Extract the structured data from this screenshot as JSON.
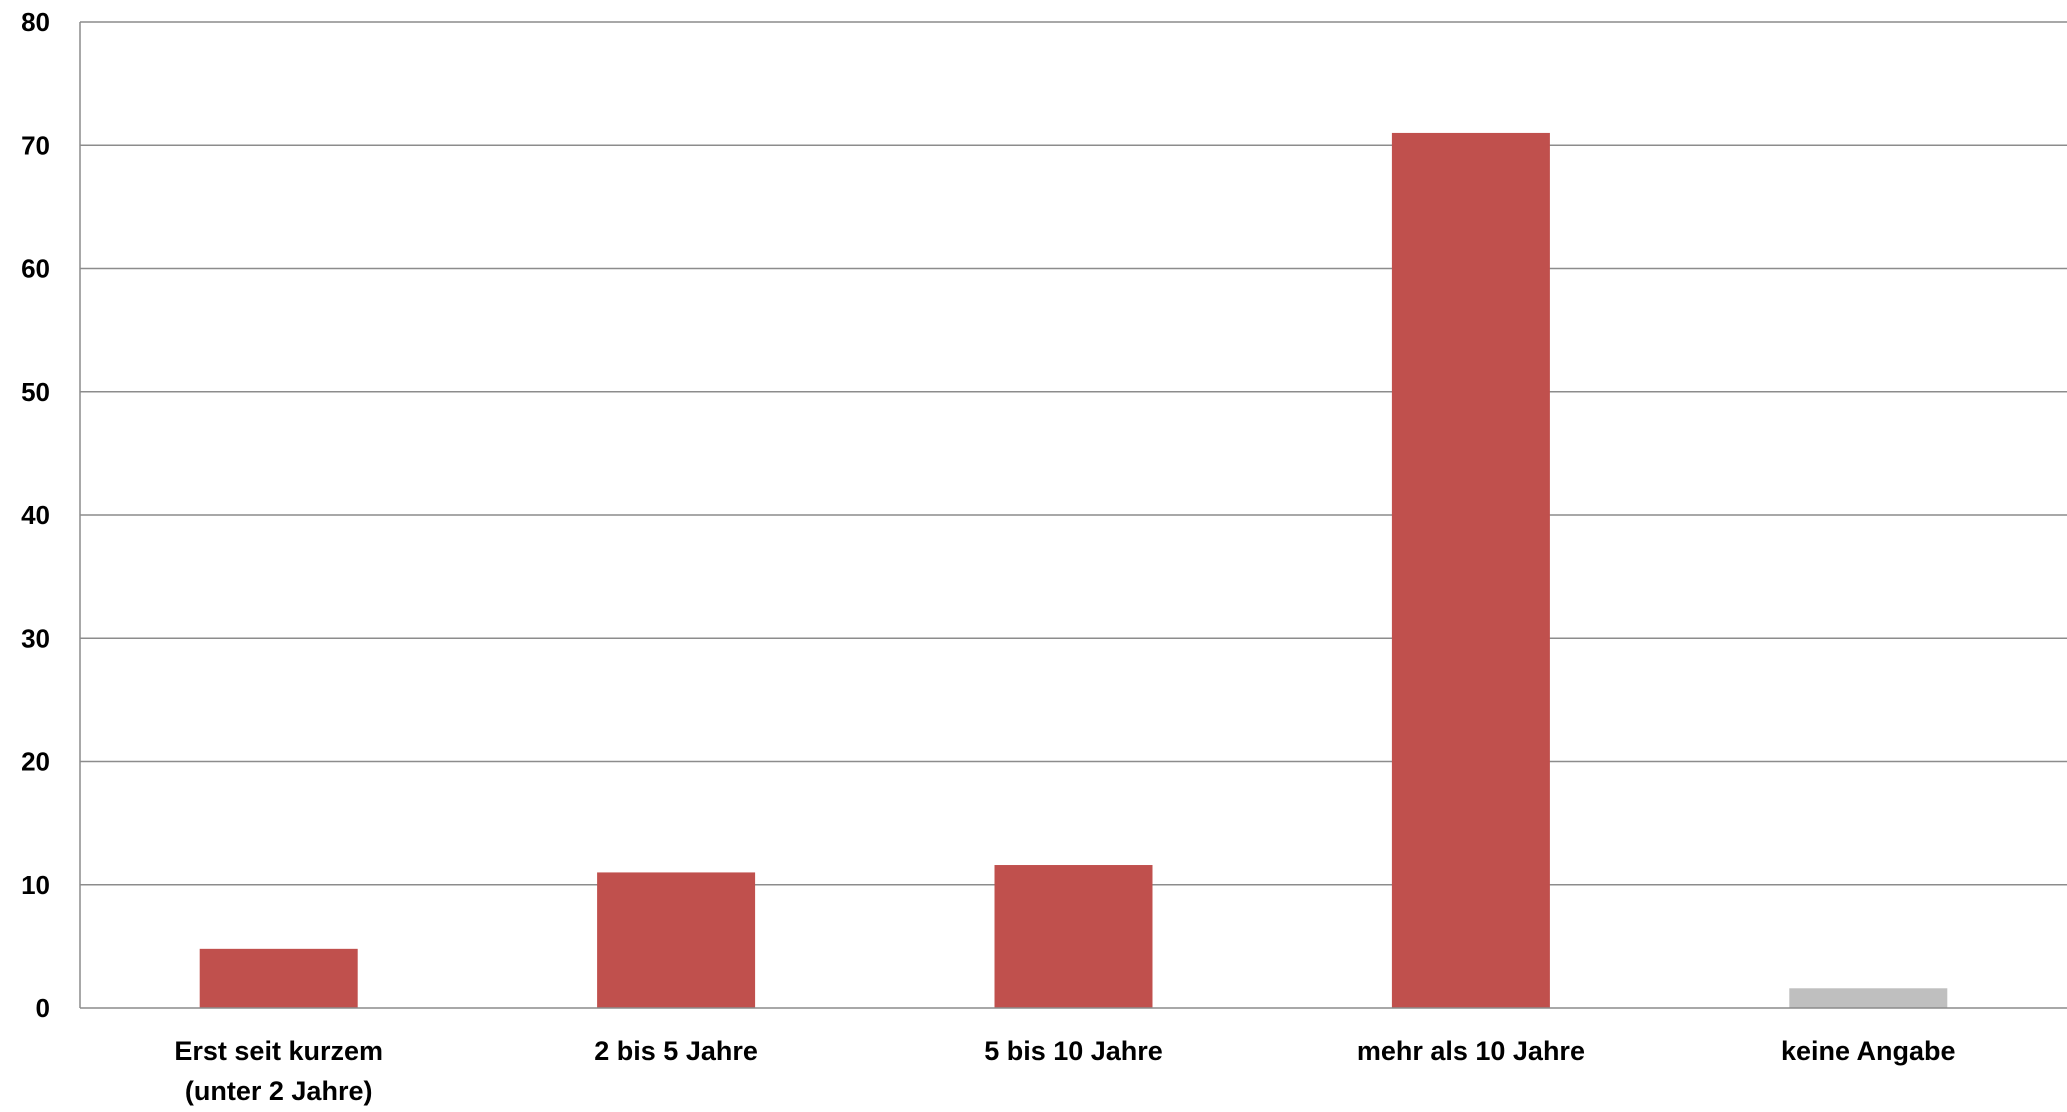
{
  "chart_data": {
    "type": "bar",
    "categories": [
      [
        "Erst seit kurzem",
        "(unter 2 Jahre)"
      ],
      [
        "2 bis 5 Jahre"
      ],
      [
        "5 bis 10 Jahre"
      ],
      [
        "mehr als 10 Jahre"
      ],
      [
        "keine Angabe"
      ]
    ],
    "values": [
      4.8,
      11.0,
      11.6,
      71.0,
      1.6
    ],
    "bar_colors": [
      "#c0504d",
      "#c0504d",
      "#c0504d",
      "#c0504d",
      "#bfbfbf"
    ],
    "ylim": [
      0,
      80
    ],
    "yticks": [
      0,
      10,
      20,
      30,
      40,
      50,
      60,
      70,
      80
    ],
    "grid": true,
    "legend": "none",
    "title": "",
    "xlabel": "",
    "ylabel": ""
  }
}
